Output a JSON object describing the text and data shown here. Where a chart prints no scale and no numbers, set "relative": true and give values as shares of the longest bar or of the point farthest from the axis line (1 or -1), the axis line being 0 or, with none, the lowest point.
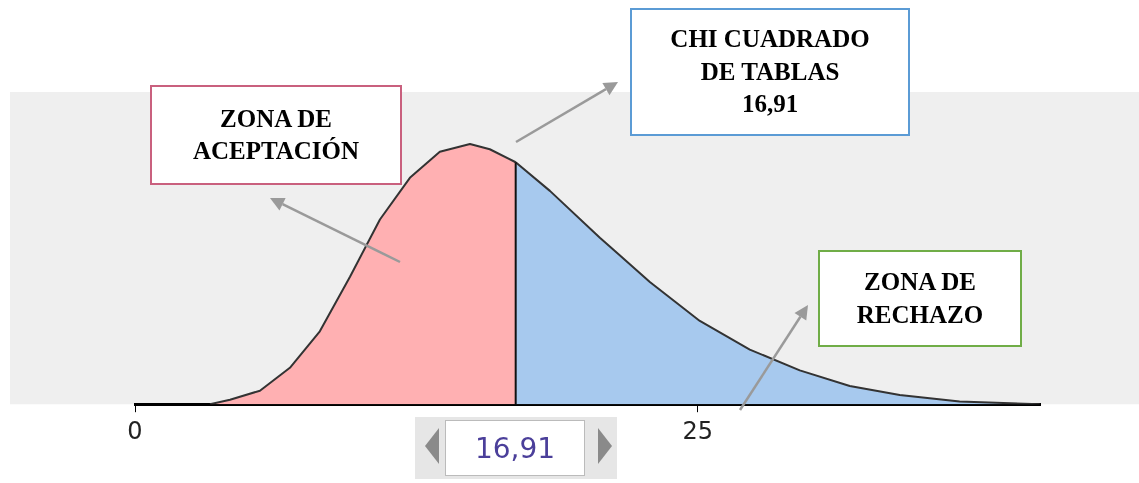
{
  "chart_data": {
    "type": "area",
    "relative": true,
    "xlim": [
      0,
      40.2
    ],
    "xticks": [
      0,
      25
    ],
    "series": [
      {
        "color": "#ffb0b2",
        "x": [
          3.33,
          4.22,
          5.55,
          6.88,
          8.21,
          9.55,
          10.88,
          12.21,
          13.54,
          14.88,
          15.76,
          16.91
        ],
        "values": [
          0,
          0.017,
          0.052,
          0.14,
          0.28,
          0.49,
          0.71,
          0.87,
          0.97,
          1,
          0.98,
          0.93
        ]
      },
      {
        "color": "#a7c9ee",
        "x": [
          16.91,
          18.43,
          20.65,
          22.87,
          25.09,
          27.31,
          29.53,
          31.75,
          33.97,
          36.63,
          40.19
        ],
        "values": [
          0.93,
          0.82,
          0.64,
          0.47,
          0.32,
          0.21,
          0.13,
          0.07,
          0.035,
          0.01,
          0
        ]
      }
    ],
    "ref_lines": [
      {
        "axis": "x",
        "value": 16.91,
        "label": "16,91"
      }
    ],
    "annotations": [
      "ZONA DE\nACEPTACIÓN",
      "CHI CUADRADO\nDE TABLAS\n16,91",
      "ZONA DE\nRECHAZO"
    ]
  }
}
